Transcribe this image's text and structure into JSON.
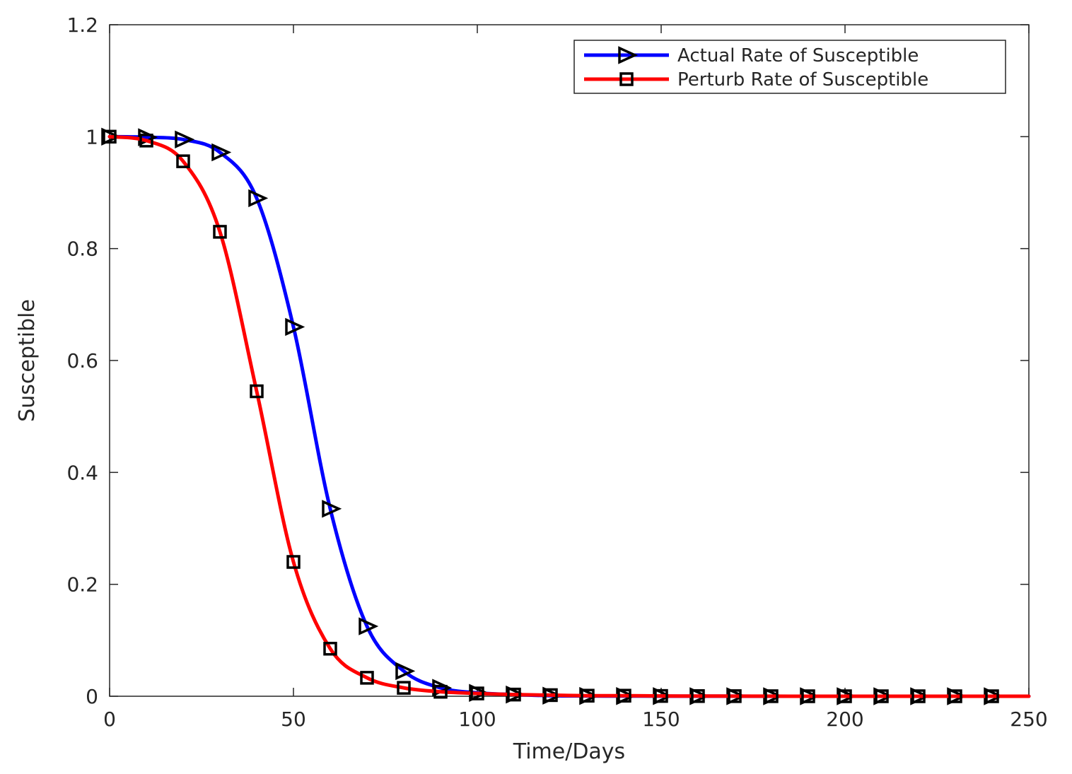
{
  "chart_data": {
    "type": "line",
    "title": "",
    "xlabel": "Time/Days",
    "ylabel": "Susceptible",
    "xlim": [
      0,
      250
    ],
    "ylim": [
      0,
      1.2
    ],
    "xticks": [
      0,
      50,
      100,
      150,
      200,
      250
    ],
    "yticks": [
      0,
      0.2,
      0.4,
      0.6,
      0.8,
      1,
      1.2
    ],
    "xtick_labels": [
      "0",
      "50",
      "100",
      "150",
      "200",
      "250"
    ],
    "ytick_labels": [
      "0",
      "0.2",
      "0.4",
      "0.6",
      "0.8",
      "1",
      "1.2"
    ],
    "grid": false,
    "legend_position": "top-right",
    "series": [
      {
        "name": "Actual Rate of Susceptible",
        "color": "#0000ff",
        "marker": "triangle-right",
        "x": [
          0,
          10,
          20,
          30,
          40,
          50,
          60,
          70,
          80,
          90,
          100,
          110,
          120,
          130,
          140,
          150,
          160,
          170,
          180,
          190,
          200,
          210,
          220,
          230,
          240,
          250
        ],
        "values": [
          1.0,
          0.999,
          0.995,
          0.972,
          0.89,
          0.66,
          0.335,
          0.125,
          0.045,
          0.015,
          0.006,
          0.003,
          0.001,
          0.0005,
          0.0003,
          0.0002,
          0.0001,
          0.0001,
          0,
          0,
          0,
          0,
          0,
          0,
          0,
          0
        ]
      },
      {
        "name": "Perturb Rate of Susceptible",
        "color": "#ff0000",
        "marker": "square",
        "x": [
          0,
          10,
          20,
          30,
          40,
          50,
          60,
          70,
          80,
          90,
          100,
          110,
          120,
          130,
          140,
          150,
          160,
          170,
          180,
          190,
          200,
          210,
          220,
          230,
          240,
          250
        ],
        "values": [
          1.0,
          0.993,
          0.956,
          0.83,
          0.545,
          0.24,
          0.085,
          0.033,
          0.015,
          0.008,
          0.005,
          0.003,
          0.002,
          0.001,
          0.001,
          0.0005,
          0.0003,
          0.0002,
          0.0001,
          0,
          0,
          0,
          0,
          0,
          0,
          0
        ]
      }
    ]
  }
}
